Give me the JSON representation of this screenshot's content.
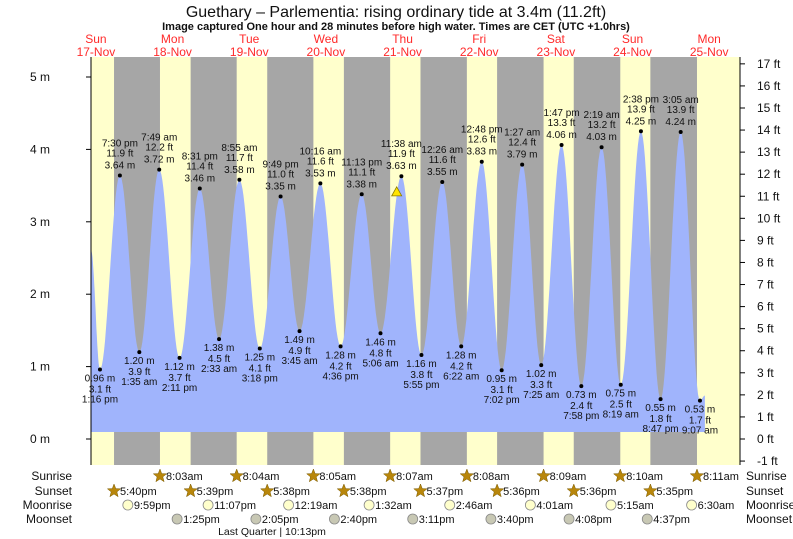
{
  "title": "Guethary – Parlementia: rising  ordinary tide at 3.4m (11.2ft)",
  "subtitle": "Image captured One hour and 28 minutes before high water. Times are CET (UTC +1.0hrs)",
  "colors": {
    "day": "#ffffcc",
    "night": "#a6a6a6",
    "tide": "#a0b4fc",
    "day_label": "#ff2a2a",
    "sun": "#b8860b",
    "moonrise": "#ffffcc",
    "moonset": "#c8c8b4",
    "marker": "#ffe400"
  },
  "chart_data": {
    "type": "area",
    "title": "Guethary – Parlementia: rising  ordinary tide at 3.4m (11.2ft)",
    "ylabel_left": "m",
    "ylabel_right": "ft",
    "ylim_m": [
      -0.3,
      5.3
    ],
    "left_ticks": [
      "0 m",
      "1 m",
      "2 m",
      "3 m",
      "4 m",
      "5 m"
    ],
    "right_ticks": [
      "-1 ft",
      "0 ft",
      "1 ft",
      "2 ft",
      "3 ft",
      "4 ft",
      "5 ft",
      "6 ft",
      "7 ft",
      "8 ft",
      "9 ft",
      "10 ft",
      "11 ft",
      "12 ft",
      "13 ft",
      "14 ft",
      "15 ft",
      "16 ft",
      "17 ft"
    ],
    "days": [
      {
        "dow": "Sun",
        "date": "17-Nov"
      },
      {
        "dow": "Mon",
        "date": "18-Nov"
      },
      {
        "dow": "Tue",
        "date": "19-Nov"
      },
      {
        "dow": "Wed",
        "date": "20-Nov"
      },
      {
        "dow": "Thu",
        "date": "21-Nov"
      },
      {
        "dow": "Fri",
        "date": "22-Nov"
      },
      {
        "dow": "Sat",
        "date": "23-Nov"
      },
      {
        "dow": "Sun",
        "date": "24-Nov"
      },
      {
        "dow": "Mon",
        "date": "25-Nov"
      }
    ],
    "range": {
      "start": {
        "day": 0,
        "time": "10:30 am",
        "m": 2.6
      },
      "end": {
        "day": 8,
        "time": "10:40 am",
        "m": 0.6
      }
    },
    "extremes": [
      {
        "type": "low",
        "day": 0,
        "time": "1:16 pm",
        "m": "0.96 m",
        "ft": "3.1 ft",
        "v": 0.96
      },
      {
        "type": "high",
        "day": 0,
        "time": "7:30 pm",
        "m": "3.64 m",
        "ft": "11.9 ft",
        "v": 3.64
      },
      {
        "type": "low",
        "day": 1,
        "time": "1:35 am",
        "m": "1.20 m",
        "ft": "3.9 ft",
        "v": 1.2
      },
      {
        "type": "high",
        "day": 1,
        "time": "7:49 am",
        "m": "3.72 m",
        "ft": "12.2 ft",
        "v": 3.72
      },
      {
        "type": "low",
        "day": 1,
        "time": "2:11 pm",
        "m": "1.12 m",
        "ft": "3.7 ft",
        "v": 1.12
      },
      {
        "type": "high",
        "day": 1,
        "time": "8:31 pm",
        "m": "3.46 m",
        "ft": "11.4 ft",
        "v": 3.46
      },
      {
        "type": "low",
        "day": 2,
        "time": "2:33 am",
        "m": "1.38 m",
        "ft": "4.5 ft",
        "v": 1.38
      },
      {
        "type": "high",
        "day": 2,
        "time": "8:55 am",
        "m": "3.58 m",
        "ft": "11.7 ft",
        "v": 3.58
      },
      {
        "type": "low",
        "day": 2,
        "time": "3:18 pm",
        "m": "1.25 m",
        "ft": "4.1 ft",
        "v": 1.25
      },
      {
        "type": "high",
        "day": 2,
        "time": "9:49 pm",
        "m": "3.35 m",
        "ft": "11.0 ft",
        "v": 3.35
      },
      {
        "type": "low",
        "day": 3,
        "time": "3:45 am",
        "m": "1.49 m",
        "ft": "4.9 ft",
        "v": 1.49
      },
      {
        "type": "high",
        "day": 3,
        "time": "10:16 am",
        "m": "3.53 m",
        "ft": "11.6 ft",
        "v": 3.53
      },
      {
        "type": "low",
        "day": 3,
        "time": "4:36 pm",
        "m": "1.28 m",
        "ft": "4.2 ft",
        "v": 1.28
      },
      {
        "type": "high",
        "day": 3,
        "time": "11:13 pm",
        "m": "3.38 m",
        "ft": "11.1 ft",
        "v": 3.38
      },
      {
        "type": "low",
        "day": 4,
        "time": "5:06 am",
        "m": "1.46 m",
        "ft": "4.8 ft",
        "v": 1.46
      },
      {
        "type": "high",
        "day": 4,
        "time": "11:38 am",
        "m": "3.63 m",
        "ft": "11.9 ft",
        "v": 3.63
      },
      {
        "type": "low",
        "day": 4,
        "time": "5:55 pm",
        "m": "1.16 m",
        "ft": "3.8 ft",
        "v": 1.16
      },
      {
        "type": "high",
        "day": 5,
        "time": "12:26 am",
        "m": "3.55 m",
        "ft": "11.6 ft",
        "v": 3.55
      },
      {
        "type": "low",
        "day": 5,
        "time": "6:22 am",
        "m": "1.28 m",
        "ft": "4.2 ft",
        "v": 1.28
      },
      {
        "type": "high",
        "day": 5,
        "time": "12:48 pm",
        "m": "3.83 m",
        "ft": "12.6 ft",
        "v": 3.83
      },
      {
        "type": "low",
        "day": 5,
        "time": "7:02 pm",
        "m": "0.95 m",
        "ft": "3.1 ft",
        "v": 0.95
      },
      {
        "type": "high",
        "day": 6,
        "time": "1:27 am",
        "m": "3.79 m",
        "ft": "12.4 ft",
        "v": 3.79
      },
      {
        "type": "low",
        "day": 6,
        "time": "7:25 am",
        "m": "1.02 m",
        "ft": "3.3 ft",
        "v": 1.02
      },
      {
        "type": "high",
        "day": 6,
        "time": "1:47 pm",
        "m": "4.06 m",
        "ft": "13.3 ft",
        "v": 4.06
      },
      {
        "type": "low",
        "day": 6,
        "time": "7:58 pm",
        "m": "0.73 m",
        "ft": "2.4 ft",
        "v": 0.73
      },
      {
        "type": "high",
        "day": 7,
        "time": "2:19 am",
        "m": "4.03 m",
        "ft": "13.2 ft",
        "v": 4.03
      },
      {
        "type": "low",
        "day": 7,
        "time": "8:19 am",
        "m": "0.75 m",
        "ft": "2.5 ft",
        "v": 0.75
      },
      {
        "type": "high",
        "day": 7,
        "time": "2:38 pm",
        "m": "4.25 m",
        "ft": "13.9 ft",
        "v": 4.25
      },
      {
        "type": "low",
        "day": 7,
        "time": "8:47 pm",
        "m": "0.55 m",
        "ft": "1.8 ft",
        "v": 0.55
      },
      {
        "type": "high",
        "day": 8,
        "time": "3:05 am",
        "m": "4.24 m",
        "ft": "13.9 ft",
        "v": 4.24
      },
      {
        "type": "low",
        "day": 8,
        "time": "9:07 am",
        "m": "0.53 m",
        "ft": "1.7 ft",
        "v": 0.53
      }
    ],
    "current": {
      "day": 4,
      "time": "10:10 am",
      "m": 3.4
    },
    "sunrise": [
      {
        "day": 1,
        "time": "8:03am"
      },
      {
        "day": 2,
        "time": "8:04am"
      },
      {
        "day": 3,
        "time": "8:05am"
      },
      {
        "day": 4,
        "time": "8:07am"
      },
      {
        "day": 5,
        "time": "8:08am"
      },
      {
        "day": 6,
        "time": "8:09am"
      },
      {
        "day": 7,
        "time": "8:10am"
      },
      {
        "day": 8,
        "time": "8:11am"
      }
    ],
    "sunset": [
      {
        "day": 0,
        "time": "5:40pm"
      },
      {
        "day": 1,
        "time": "5:39pm"
      },
      {
        "day": 2,
        "time": "5:38pm"
      },
      {
        "day": 3,
        "time": "5:38pm"
      },
      {
        "day": 4,
        "time": "5:37pm"
      },
      {
        "day": 5,
        "time": "5:36pm"
      },
      {
        "day": 6,
        "time": "5:36pm"
      },
      {
        "day": 7,
        "time": "5:35pm"
      }
    ],
    "moonrise": [
      {
        "day": 0,
        "time": "9:59pm"
      },
      {
        "day": 1,
        "time": "11:07pm"
      },
      {
        "day": 3,
        "time": "12:19am"
      },
      {
        "day": 4,
        "time": "1:32am"
      },
      {
        "day": 5,
        "time": "2:46am"
      },
      {
        "day": 6,
        "time": "4:01am"
      },
      {
        "day": 7,
        "time": "5:15am"
      },
      {
        "day": 8,
        "time": "6:30am"
      }
    ],
    "moonset": [
      {
        "day": 1,
        "time": "1:25pm"
      },
      {
        "day": 2,
        "time": "2:05pm"
      },
      {
        "day": 3,
        "time": "2:40pm"
      },
      {
        "day": 4,
        "time": "3:11pm"
      },
      {
        "day": 5,
        "time": "3:40pm"
      },
      {
        "day": 6,
        "time": "4:08pm"
      },
      {
        "day": 7,
        "time": "4:37pm"
      }
    ],
    "moon_phase": {
      "day": 2,
      "time": "10:13pm",
      "label": "Last Quarter | 10:13pm"
    }
  },
  "row_labels": {
    "sunrise": "Sunrise",
    "sunset": "Sunset",
    "moonrise": "Moonrise",
    "moonset": "Moonset"
  }
}
